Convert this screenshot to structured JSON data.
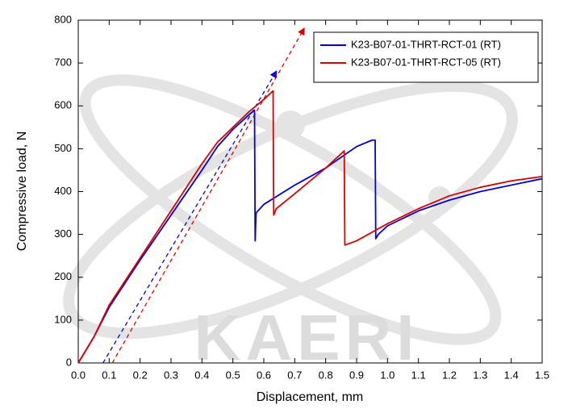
{
  "chart_data": {
    "type": "line",
    "xlabel": "Displacement, mm",
    "ylabel": "Compressive load, N",
    "watermark": "KAERI",
    "xlim": [
      0,
      1.5
    ],
    "ylim": [
      0,
      800
    ],
    "xticks": [
      {
        "value": 0,
        "label": "0.0"
      },
      0.1,
      0.2,
      0.3,
      0.4,
      0.5,
      0.6,
      0.7,
      0.8,
      0.9,
      {
        "value": 1,
        "label": "1.0"
      },
      1.1,
      1.2,
      1.3,
      1.4,
      1.5
    ],
    "yticks": [
      0,
      100,
      200,
      300,
      400,
      500,
      600,
      700,
      800
    ],
    "legend": "upper right",
    "series": [
      {
        "name": "K23-B07-01-THRT-RCT-01 (RT)",
        "color": "#0000e0",
        "x": [
          0,
          0.05,
          0.1,
          0.2,
          0.3,
          0.4,
          0.45,
          0.5,
          0.55,
          0.57,
          0.572,
          0.575,
          0.6,
          0.7,
          0.8,
          0.87,
          0.9,
          0.95,
          0.96,
          0.962,
          0.97,
          1.0,
          1.1,
          1.2,
          1.3,
          1.4,
          1.5
        ],
        "values": [
          0,
          60,
          130,
          240,
          345,
          450,
          505,
          545,
          578,
          590,
          285,
          350,
          370,
          415,
          455,
          490,
          505,
          520,
          520,
          290,
          300,
          320,
          355,
          380,
          400,
          415,
          430
        ]
      },
      {
        "name": "K23-B07-01-THRT-RCT-05 (RT)",
        "color": "#e00000",
        "x": [
          0,
          0.05,
          0.1,
          0.2,
          0.3,
          0.4,
          0.45,
          0.5,
          0.55,
          0.6,
          0.63,
          0.632,
          0.64,
          0.7,
          0.8,
          0.86,
          0.862,
          0.9,
          1.0,
          1.1,
          1.2,
          1.3,
          1.4,
          1.5
        ],
        "values": [
          0,
          60,
          135,
          245,
          355,
          465,
          515,
          550,
          585,
          615,
          635,
          345,
          360,
          395,
          455,
          495,
          275,
          285,
          325,
          360,
          390,
          410,
          425,
          435
        ]
      }
    ],
    "guides": [
      {
        "color": "#0000e0",
        "x": [
          0.08,
          0.64
        ],
        "values": [
          0,
          680
        ]
      },
      {
        "color": "#e00000",
        "x": [
          0.11,
          0.73
        ],
        "values": [
          0,
          780
        ]
      }
    ]
  }
}
